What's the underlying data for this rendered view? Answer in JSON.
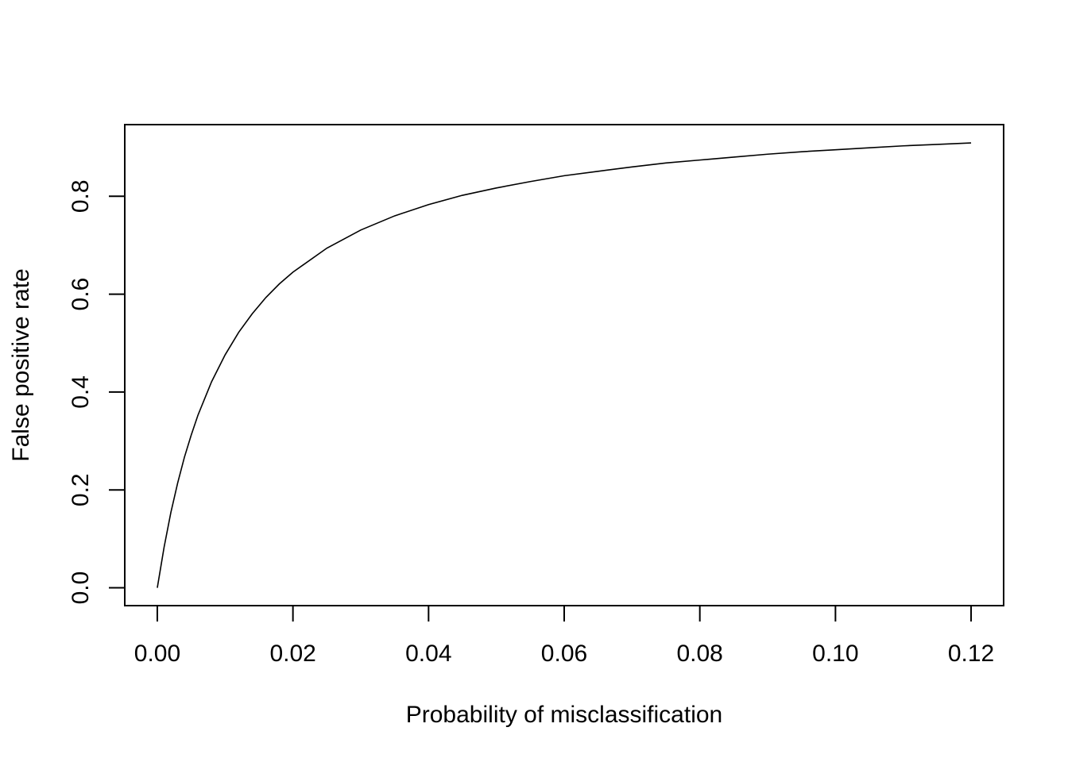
{
  "chart_data": {
    "type": "line",
    "title": "",
    "xlabel": "Probability of misclassification",
    "ylabel": "False positive rate",
    "xlim": [
      -0.0048,
      0.1248
    ],
    "ylim": [
      -0.0364,
      0.9464
    ],
    "grid": false,
    "x_ticks": [
      0.0,
      0.02,
      0.04,
      0.06,
      0.08,
      0.1,
      0.12
    ],
    "x_tick_labels": [
      "0.00",
      "0.02",
      "0.04",
      "0.06",
      "0.08",
      "0.10",
      "0.12"
    ],
    "y_ticks": [
      0.0,
      0.2,
      0.4,
      0.6,
      0.8
    ],
    "y_tick_labels": [
      "0.0",
      "0.2",
      "0.4",
      "0.6",
      "0.8"
    ],
    "series": [
      {
        "color": "#000000",
        "x": [
          0.0,
          0.001,
          0.002,
          0.003,
          0.004,
          0.005,
          0.006,
          0.008,
          0.01,
          0.012,
          0.014,
          0.016,
          0.018,
          0.02,
          0.025,
          0.03,
          0.035,
          0.04,
          0.045,
          0.05,
          0.055,
          0.06,
          0.065,
          0.07,
          0.075,
          0.08,
          0.085,
          0.09,
          0.095,
          0.1,
          0.105,
          0.11,
          0.115,
          0.12
        ],
        "y": [
          0.0,
          0.083,
          0.154,
          0.214,
          0.267,
          0.312,
          0.353,
          0.421,
          0.476,
          0.522,
          0.56,
          0.593,
          0.621,
          0.645,
          0.694,
          0.731,
          0.76,
          0.783,
          0.802,
          0.817,
          0.83,
          0.842,
          0.851,
          0.86,
          0.868,
          0.874,
          0.88,
          0.886,
          0.891,
          0.895,
          0.899,
          0.903,
          0.906,
          0.909
        ]
      }
    ]
  }
}
